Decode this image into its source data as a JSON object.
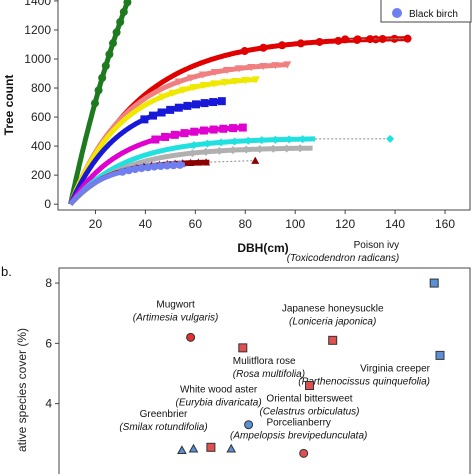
{
  "panel_b_label": "b.",
  "chart_data": [
    {
      "type": "scatter",
      "xlabel": "DBH(cm)",
      "ylabel": "Tree count",
      "xlim": [
        5,
        170
      ],
      "ylim": [
        -40,
        1420
      ],
      "xticks": [
        20,
        40,
        60,
        80,
        100,
        120,
        140,
        160
      ],
      "yticks": [
        0,
        200,
        400,
        600,
        800,
        1000,
        1200,
        1400
      ],
      "legend": {
        "placement": "top-right",
        "visible_entry": "Black birch",
        "visible_entry_color": "#6f7ff0"
      },
      "series": [
        {
          "color": "#1e7a1e",
          "marker": "circle",
          "asymptote": 3200,
          "scale": 40,
          "xmax": 36
        },
        {
          "color": "#e00000",
          "marker": "circle",
          "asymptote": 1150,
          "scale": 28,
          "xmax": 145,
          "tail": [
            [
              120,
              1135
            ],
            [
              125,
              1135
            ],
            [
              130,
              1137
            ],
            [
              135,
              1138
            ],
            [
              145,
              1140
            ]
          ]
        },
        {
          "color": "#f08080",
          "marker": "triangle-down",
          "asymptote": 980,
          "scale": 22,
          "xmax": 97
        },
        {
          "color": "#f0e800",
          "marker": "triangle-down",
          "asymptote": 880,
          "scale": 20,
          "xmax": 85
        },
        {
          "color": "#1818d8",
          "marker": "square",
          "asymptote": 740,
          "scale": 19,
          "xmax": 72
        },
        {
          "color": "#e000d0",
          "marker": "square",
          "asymptote": 545,
          "scale": 20,
          "xmax": 80
        },
        {
          "color": "#20e0e0",
          "marker": "diamond",
          "asymptote": 455,
          "scale": 22,
          "xmax": 108,
          "tail": [
            [
              138,
              450
            ]
          ]
        },
        {
          "color": "#b0b0b0",
          "marker": "diamond",
          "asymptote": 390,
          "scale": 21,
          "xmax": 107
        },
        {
          "color": "#8b0000",
          "marker": "triangle-up",
          "asymptote": 295,
          "scale": 14,
          "xmax": 66,
          "tail": [
            [
              84,
              300
            ]
          ]
        },
        {
          "color": "#6f7ff0",
          "marker": "circle",
          "asymptote": 280,
          "scale": 13,
          "xmax": 56
        }
      ]
    },
    {
      "type": "scatter",
      "ylabel": "ative species cover (%)",
      "yticks": [
        4,
        6,
        8
      ],
      "ylim": [
        1.2,
        8.5
      ],
      "points": [
        {
          "name": "Poison ivy",
          "sci": "(Toxicodendron radicans)",
          "x": 0.98,
          "y": 8.0,
          "color": "#5b8fd6",
          "shape": "square"
        },
        {
          "name": "Japanese honeysuckle",
          "sci": "(Loniceria japonica)",
          "x": 0.63,
          "y": 6.1,
          "color": "#e05050",
          "shape": "square"
        },
        {
          "name": "Mugwort",
          "sci": "(Artimesia vulgaris)",
          "x": 0.14,
          "y": 6.2,
          "color": "#e03030",
          "shape": "circle"
        },
        {
          "name": "Mulitflora rose",
          "sci": "(Rosa multifolia)",
          "x": 0.32,
          "y": 5.85,
          "color": "#e05050",
          "shape": "square"
        },
        {
          "name": "Virginia creeper",
          "sci": "(Parthenocissus quinquefolia)",
          "x": 1.0,
          "y": 5.6,
          "color": "#5b8fd6",
          "shape": "square"
        },
        {
          "name": "Oriental bittersweet",
          "sci": "(Celastrus orbiculatus)",
          "x": 0.55,
          "y": 4.6,
          "color": "#e05050",
          "shape": "square"
        },
        {
          "name": "White wood aster",
          "sci": "(Eurybia divaricata)",
          "x": 0.34,
          "y": 3.3,
          "color": "#5b8fd6",
          "shape": "circle"
        },
        {
          "name": "Porcelianberry",
          "sci": "(Ampelopsis brevipedunculata)",
          "x": 0.53,
          "y": 2.35,
          "color": "#e05050",
          "shape": "circle"
        },
        {
          "name": "Greenbrier",
          "sci": "(Smilax rotundifolia)",
          "x": 0.15,
          "y": 2.5,
          "color": "#5b8fd6",
          "shape": "triangle"
        }
      ],
      "extra_marks": [
        {
          "x": 0.11,
          "y": 2.45,
          "color": "#5b8fd6",
          "shape": "triangle"
        },
        {
          "x": 0.21,
          "y": 2.55,
          "color": "#e05050",
          "shape": "square"
        },
        {
          "x": 0.28,
          "y": 2.5,
          "color": "#5b8fd6",
          "shape": "triangle"
        }
      ]
    }
  ]
}
